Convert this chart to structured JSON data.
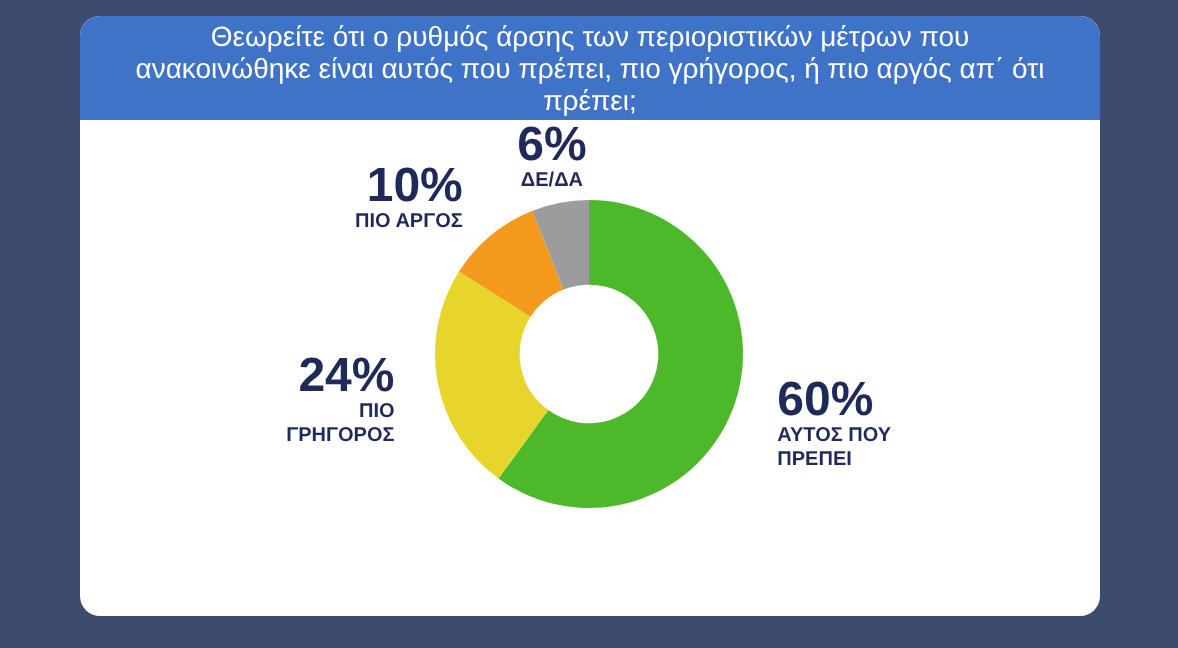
{
  "chart_data": {
    "type": "donut",
    "title": "Θεωρείτε ότι ο ρυθμός άρσης των περιοριστικών μέτρων που ανακοινώθηκε είναι αυτός που πρέπει, πιο γρήγορος, ή πιο αργός απ΄ ότι πρέπει;",
    "categories": [
      "ΑΥΤΟΣ ΠΟΥ ΠΡΕΠΕΙ",
      "ΠΙΟ ΓΡΗΓΟΡΟΣ",
      "ΠΙΟ ΑΡΓΟΣ",
      "ΔΕ/ΔΑ"
    ],
    "values": [
      60,
      24,
      10,
      6
    ],
    "value_labels": [
      "60%",
      "24%",
      "10%",
      "6%"
    ],
    "colors": [
      "#4cb82a",
      "#e6d62b",
      "#f39a1c",
      "#9c9c9c"
    ],
    "legend": false
  }
}
